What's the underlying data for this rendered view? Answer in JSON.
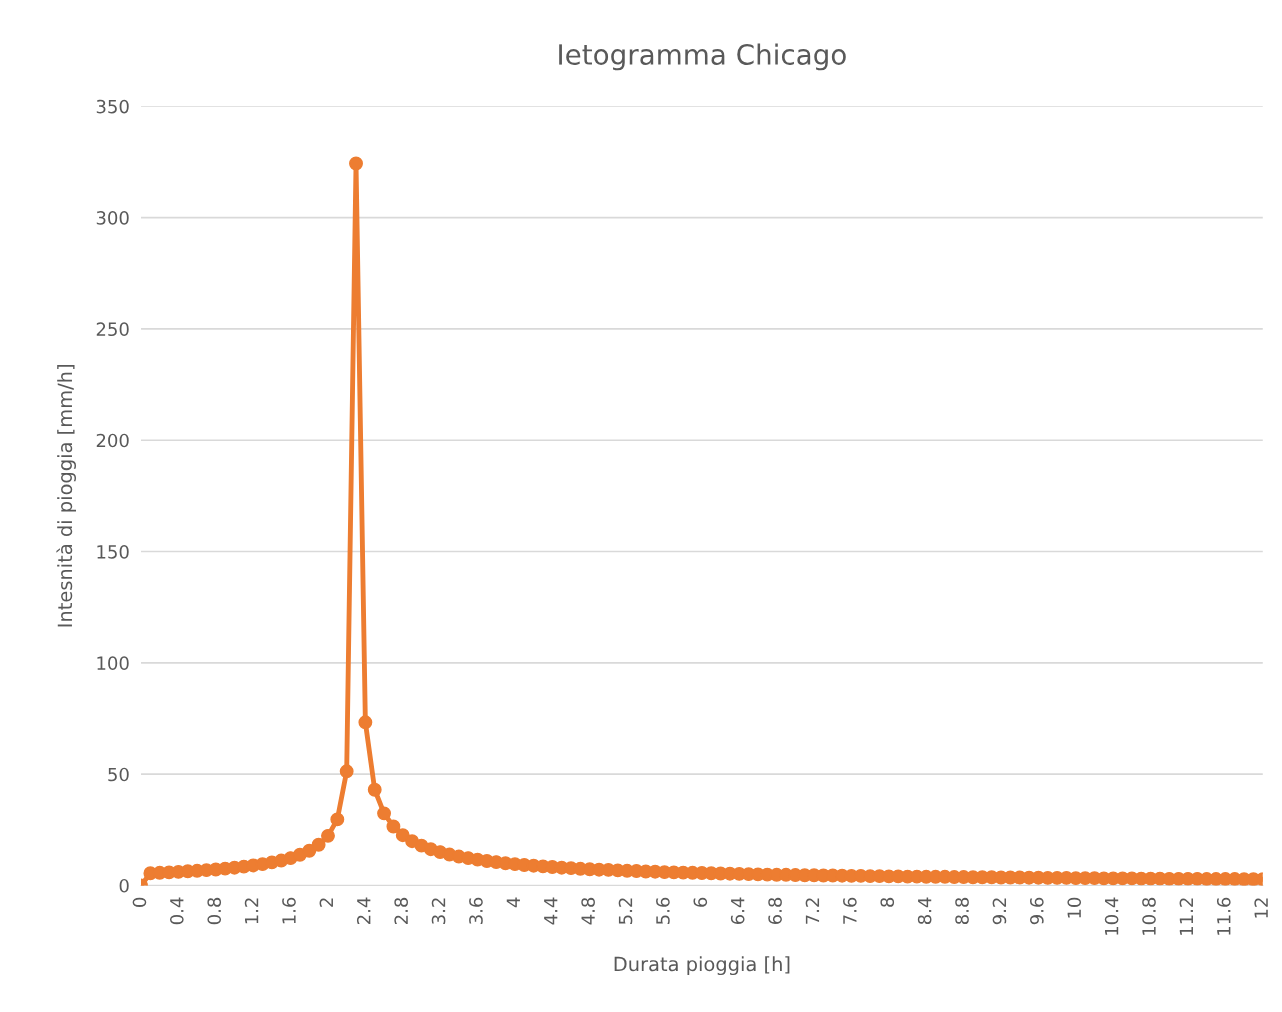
{
  "chart_data": {
    "type": "line",
    "title": "Ietogramma Chicago",
    "xlabel": "Durata pioggia [h]",
    "ylabel": "Intesnità di pioggia [mm/h]",
    "x": [
      0,
      0.1,
      0.2,
      0.3,
      0.4,
      0.5,
      0.6,
      0.7,
      0.8,
      0.9,
      1,
      1.1,
      1.2,
      1.3,
      1.4,
      1.5,
      1.6,
      1.7,
      1.8,
      1.9,
      2,
      2.1,
      2.2,
      2.3,
      2.4,
      2.5,
      2.6,
      2.7,
      2.8,
      2.9,
      3,
      3.1,
      3.2,
      3.3,
      3.4,
      3.5,
      3.6,
      3.7,
      3.8,
      3.9,
      4,
      4.1,
      4.2,
      4.3,
      4.4,
      4.5,
      4.6,
      4.7,
      4.8,
      4.9,
      5,
      5.1,
      5.2,
      5.3,
      5.4,
      5.5,
      5.6,
      5.7,
      5.8,
      5.9,
      6,
      6.1,
      6.2,
      6.3,
      6.4,
      6.5,
      6.6,
      6.7,
      6.8,
      6.9,
      7,
      7.1,
      7.2,
      7.3,
      7.4,
      7.5,
      7.6,
      7.7,
      7.8,
      7.9,
      8,
      8.1,
      8.2,
      8.3,
      8.4,
      8.5,
      8.6,
      8.7,
      8.8,
      8.9,
      9,
      9.1,
      9.2,
      9.3,
      9.4,
      9.5,
      9.6,
      9.7,
      9.8,
      9.9,
      10,
      10.1,
      10.2,
      10.3,
      10.4,
      10.5,
      10.6,
      10.7,
      10.8,
      10.9,
      11,
      11.1,
      11.2,
      11.3,
      11.4,
      11.5,
      11.6,
      11.7,
      11.8,
      11.9,
      12
    ],
    "series": [
      {
        "color": "#ed7d31",
        "values": [
          0,
          5.5,
          5.7,
          5.9,
          6.1,
          6.4,
          6.6,
          6.9,
          7.2,
          7.6,
          8.0,
          8.5,
          9.0,
          9.6,
          10.4,
          11.2,
          12.3,
          13.8,
          15.6,
          18.3,
          22.3,
          29.7,
          51.3,
          324.3,
          73.3,
          43.0,
          32.4,
          26.5,
          22.6,
          19.9,
          17.9,
          16.3,
          15.0,
          13.9,
          13.0,
          12.3,
          11.6,
          11.0,
          10.5,
          10.0,
          9.6,
          9.2,
          8.9,
          8.6,
          8.3,
          8.0,
          7.8,
          7.5,
          7.3,
          7.1,
          7.0,
          6.8,
          6.6,
          6.5,
          6.3,
          6.2,
          6.0,
          5.9,
          5.8,
          5.7,
          5.6,
          5.5,
          5.4,
          5.3,
          5.2,
          5.1,
          5.0,
          4.9,
          4.8,
          4.8,
          4.7,
          4.6,
          4.6,
          4.5,
          4.5,
          4.4,
          4.3,
          4.3,
          4.2,
          4.2,
          4.1,
          4.1,
          4.0,
          4.0,
          3.9,
          3.9,
          3.9,
          3.8,
          3.8,
          3.7,
          3.7,
          3.7,
          3.6,
          3.6,
          3.6,
          3.5,
          3.5,
          3.4,
          3.4,
          3.4,
          3.3,
          3.3,
          3.3,
          3.2,
          3.2,
          3.2,
          3.2,
          3.1,
          3.1,
          3.1,
          3.0,
          3.0,
          3.0,
          3.0,
          2.9,
          2.9,
          2.9,
          2.9,
          2.8,
          2.8,
          2.8
        ]
      }
    ],
    "xlim": [
      0,
      12
    ],
    "xticks": [
      0,
      0.4,
      0.8,
      1.2,
      1.6,
      2,
      2.4,
      2.8,
      3.2,
      3.6,
      4,
      4.4,
      4.8,
      5.2,
      5.6,
      6,
      6.4,
      6.8,
      7.2,
      7.6,
      8,
      8.4,
      8.8,
      9.2,
      9.6,
      10,
      10.4,
      10.8,
      11.2,
      11.6,
      12
    ],
    "ylim": [
      0,
      350
    ],
    "yticks": [
      0,
      50,
      100,
      150,
      200,
      250,
      300,
      350
    ],
    "grid": "y",
    "marker": "circle",
    "line_style": "solid",
    "legend": false
  }
}
